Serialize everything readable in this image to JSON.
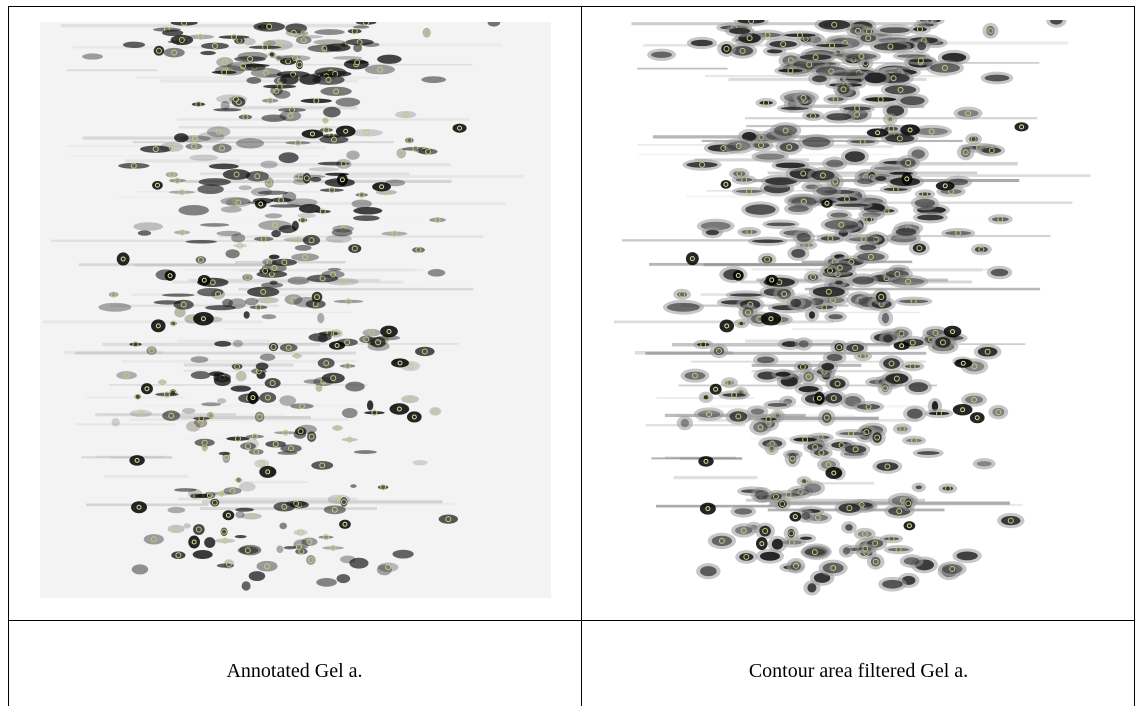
{
  "table": {
    "rows": [
      [
        "Annotated Gel a.",
        "Contour area filtered Gel a."
      ]
    ]
  }
}
